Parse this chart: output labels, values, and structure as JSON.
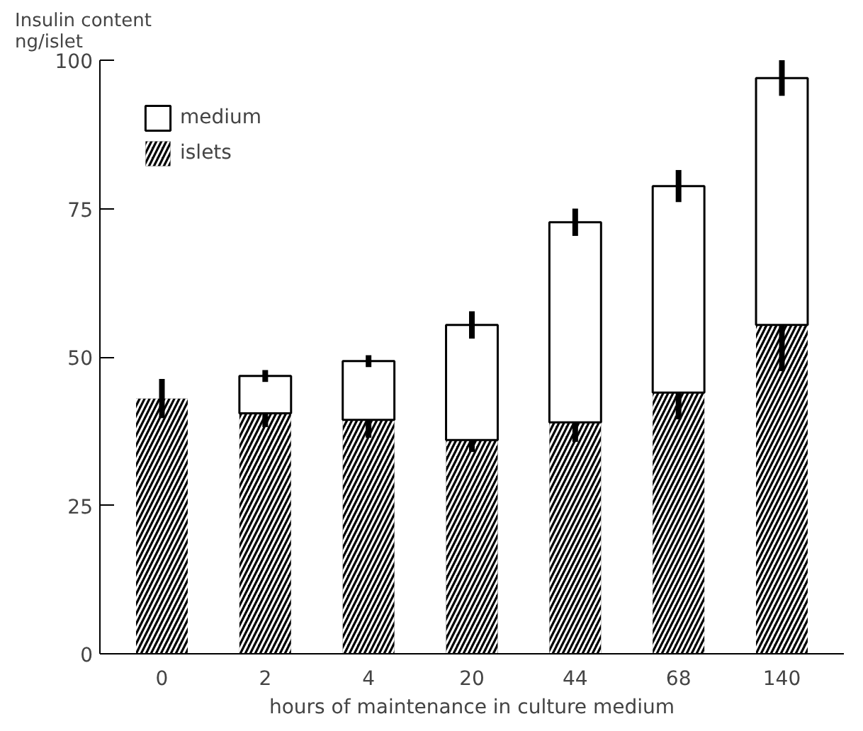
{
  "chart_data": {
    "type": "bar",
    "stacked": true,
    "ylabel": "Insulin content\nng/islet",
    "xlabel": "hours of maintenance in culture medium",
    "categories": [
      "0",
      "2",
      "4",
      "20",
      "44",
      "68",
      "140"
    ],
    "series": [
      {
        "name": "islets",
        "color": "#000000",
        "values": [
          43,
          40.5,
          39.4,
          36,
          39,
          44,
          55.4
        ],
        "errors": [
          3.3,
          2.3,
          3,
          2,
          3.3,
          4.5,
          7.8
        ]
      },
      {
        "name": "medium",
        "color": "#ffffff",
        "values": [
          null,
          6.3,
          9.9,
          19.4,
          33.7,
          34.8,
          41.6
        ],
        "errors": [
          null,
          1,
          1,
          2.3,
          2.3,
          2.7,
          3
        ]
      }
    ],
    "ylim": [
      0,
      100
    ],
    "yticks": [
      0,
      25,
      50,
      75,
      100
    ],
    "grid": false,
    "legend": "top left"
  }
}
